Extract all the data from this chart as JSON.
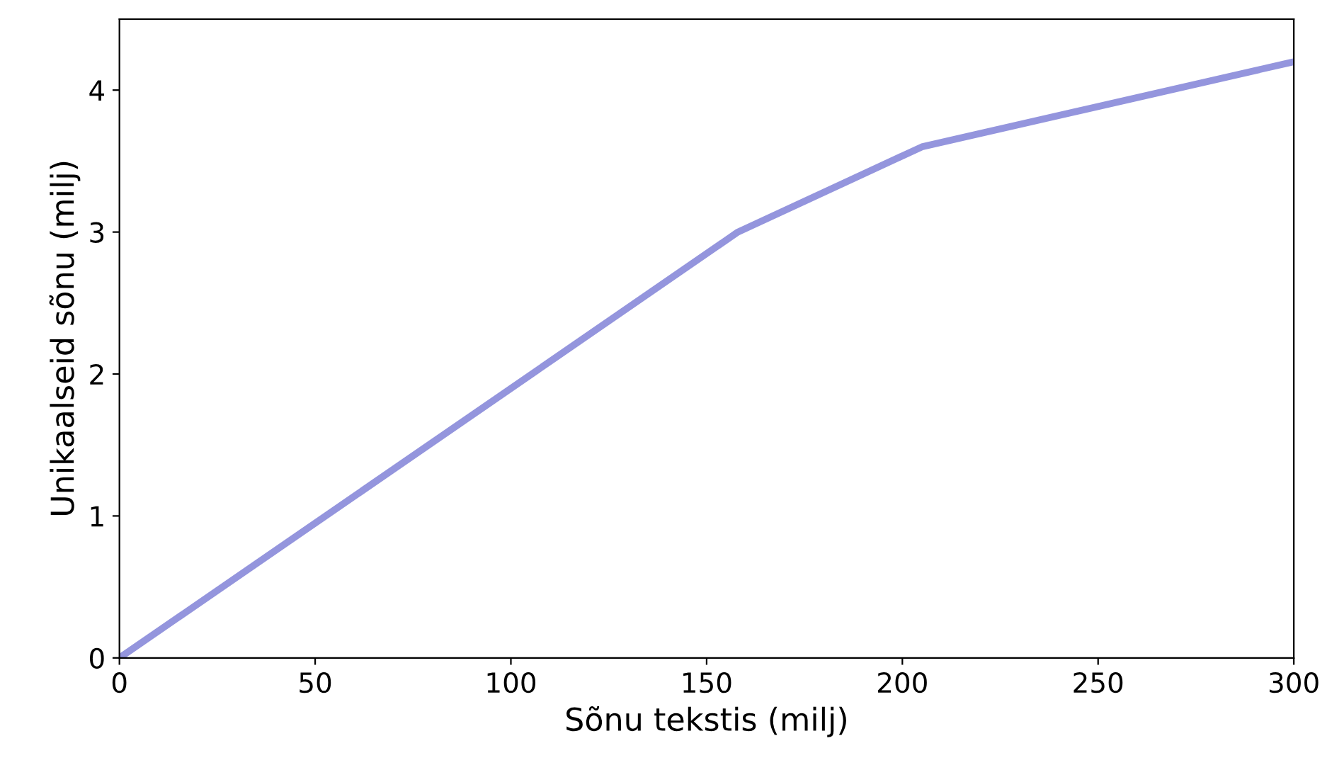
{
  "chart_data": {
    "type": "line",
    "xlabel": "Sõnu tekstis (milj)",
    "ylabel": "Unikaalseid sõnu (milj)",
    "x": [
      0,
      158,
      205,
      300
    ],
    "series": [
      {
        "color": "#9495dd",
        "values": [
          0,
          3.0,
          3.6,
          4.2
        ]
      }
    ],
    "xlim": [
      0,
      300
    ],
    "ylim": [
      0,
      4.5
    ],
    "xticks": [
      0,
      50,
      100,
      150,
      200,
      250,
      300
    ],
    "yticks": [
      0,
      1,
      2,
      3,
      4
    ],
    "grid": false,
    "legend": false,
    "marker": "none",
    "line_style": "solid"
  }
}
